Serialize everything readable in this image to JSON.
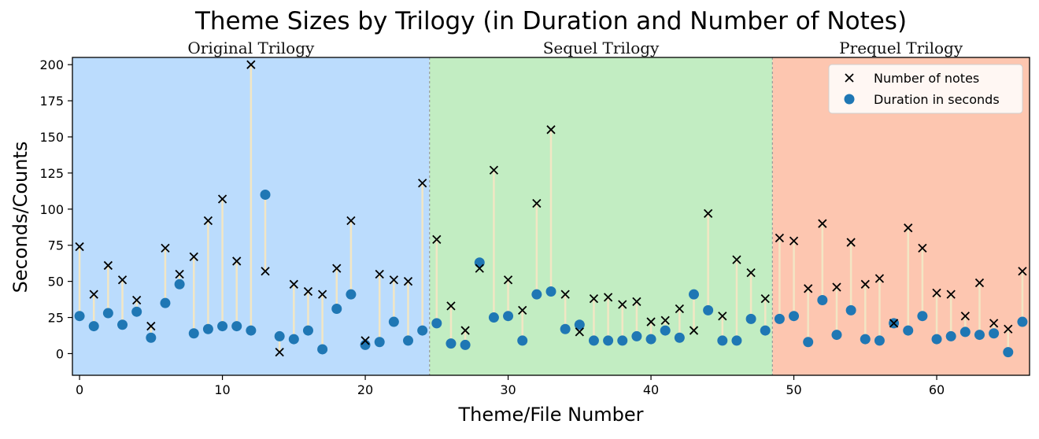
{
  "chart_data": {
    "type": "scatter",
    "title": "Theme Sizes by Trilogy (in Duration and Number of Notes)",
    "xlabel": "Theme/File Number",
    "ylabel": "Seconds/Counts",
    "xlim": [
      -0.5,
      66.5
    ],
    "ylim": [
      -15,
      205
    ],
    "x_ticks": [
      0,
      10,
      20,
      30,
      40,
      50,
      60
    ],
    "y_ticks": [
      0,
      25,
      50,
      75,
      100,
      125,
      150,
      175,
      200
    ],
    "grid": false,
    "legend_position": "top-right",
    "regions": [
      {
        "label": "Original Trilogy",
        "x_start": -0.5,
        "x_end": 24.5,
        "color": "#bbdcfd"
      },
      {
        "label": "Sequel Trilogy",
        "x_start": 24.5,
        "x_end": 48.5,
        "color": "#c2edc2"
      },
      {
        "label": "Prequel Trilogy",
        "x_start": 48.5,
        "x_end": 66.5,
        "color": "#fdc6b0"
      }
    ],
    "x": [
      0,
      1,
      2,
      3,
      4,
      5,
      6,
      7,
      8,
      9,
      10,
      11,
      12,
      13,
      14,
      15,
      16,
      17,
      18,
      19,
      20,
      21,
      22,
      23,
      24,
      25,
      26,
      27,
      28,
      29,
      30,
      31,
      32,
      33,
      34,
      35,
      36,
      37,
      38,
      39,
      40,
      41,
      42,
      43,
      44,
      45,
      46,
      47,
      48,
      49,
      50,
      51,
      52,
      53,
      54,
      55,
      56,
      57,
      58,
      59,
      60,
      61,
      62,
      63,
      64,
      65,
      66
    ],
    "series": [
      {
        "name": "Number of notes",
        "marker": "x",
        "color": "#000000",
        "values": [
          74,
          41,
          61,
          51,
          37,
          19,
          73,
          55,
          67,
          92,
          107,
          64,
          200,
          57,
          1,
          48,
          43,
          41,
          59,
          92,
          9,
          55,
          51,
          50,
          118,
          79,
          33,
          16,
          59,
          127,
          51,
          30,
          104,
          155,
          41,
          15,
          38,
          39,
          34,
          36,
          22,
          23,
          31,
          16,
          97,
          26,
          65,
          56,
          38,
          80,
          78,
          45,
          90,
          46,
          77,
          48,
          52,
          21,
          87,
          73,
          42,
          41,
          26,
          49,
          21,
          17,
          57
        ]
      },
      {
        "name": "Duration in seconds",
        "marker": "o",
        "color": "#1f77b4",
        "values": [
          26,
          19,
          28,
          20,
          29,
          11,
          35,
          48,
          14,
          17,
          19,
          19,
          16,
          110,
          12,
          10,
          16,
          3,
          31,
          41,
          6,
          8,
          22,
          9,
          16,
          21,
          7,
          6,
          63,
          25,
          26,
          9,
          41,
          43,
          17,
          20,
          9,
          9,
          9,
          12,
          10,
          16,
          11,
          41,
          30,
          9,
          9,
          24,
          16,
          24,
          26,
          8,
          37,
          13,
          30,
          10,
          9,
          21,
          16,
          26,
          10,
          12,
          15,
          13,
          14,
          1,
          22
        ]
      }
    ],
    "connector_color": "#f2e6c4"
  }
}
